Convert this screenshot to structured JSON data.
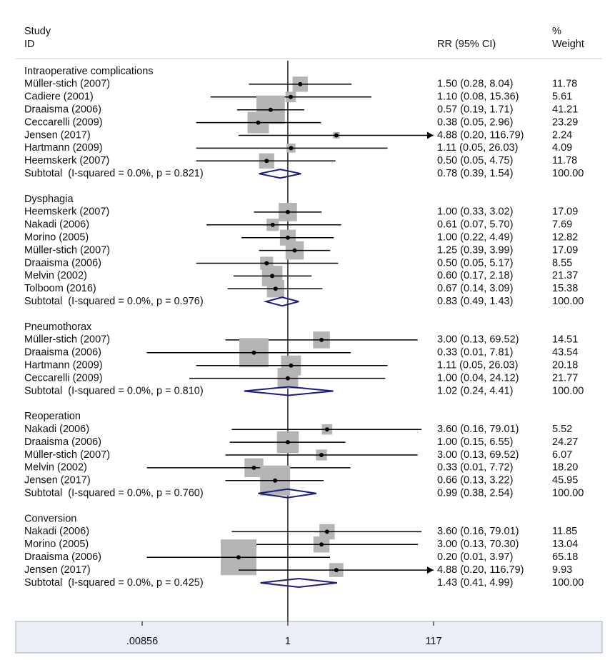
{
  "chart_data": {
    "type": "forest",
    "header": {
      "study": "Study",
      "id": "ID",
      "estimate": "RR (95% CI)",
      "weight_top": "%",
      "weight": "Weight"
    },
    "log_scale": true,
    "xlim": [
      0.00856,
      117
    ],
    "xticks": [
      {
        "value": 0.00856,
        "label": ".00856"
      },
      1,
      117
    ],
    "box_color": "#b5b5b5",
    "diamond_color": "#1c1c80",
    "groups": [
      {
        "name": "Intraoperative complications",
        "studies": [
          {
            "name": "Müller-stich (2007)",
            "rr": 1.5,
            "lo": 0.28,
            "hi": 8.04,
            "estimate_label": "1.50 (0.28, 8.04)",
            "weight": 11.78
          },
          {
            "name": "Cadiere (2001)",
            "rr": 1.1,
            "lo": 0.08,
            "hi": 15.36,
            "estimate_label": "1.10 (0.08, 15.36)",
            "weight": 5.61
          },
          {
            "name": "Draaisma (2006)",
            "rr": 0.57,
            "lo": 0.19,
            "hi": 1.71,
            "estimate_label": "0.57 (0.19, 1.71)",
            "weight": 41.21
          },
          {
            "name": "Ceccarelli (2009)",
            "rr": 0.38,
            "lo": 0.05,
            "hi": 2.96,
            "estimate_label": "0.38 (0.05, 2.96)",
            "weight": 23.29
          },
          {
            "name": "Jensen (2017)",
            "rr": 4.88,
            "lo": 0.2,
            "hi": 116.79,
            "estimate_label": "4.88 (0.20, 116.79)",
            "weight": 2.24
          },
          {
            "name": "Hartmann (2009)",
            "rr": 1.11,
            "lo": 0.05,
            "hi": 26.03,
            "estimate_label": "1.11 (0.05, 26.03)",
            "weight": 4.09
          },
          {
            "name": "Heemskerk (2007)",
            "rr": 0.5,
            "lo": 0.05,
            "hi": 4.75,
            "estimate_label": "0.50 (0.05, 4.75)",
            "weight": 11.78
          }
        ],
        "subtotal": {
          "label": "Subtotal  (I-squared = 0.0%, p = 0.821)",
          "rr": 0.78,
          "lo": 0.39,
          "hi": 1.54,
          "estimate_label": "0.78 (0.39, 1.54)",
          "weight": {
            "value": 100,
            "label": "100.00"
          }
        }
      },
      {
        "name": "Dysphagia",
        "studies": [
          {
            "name": "Heemskerk (2007)",
            "rr": 1.0,
            "lo": 0.33,
            "hi": 3.02,
            "estimate_label": "1.00 (0.33, 3.02)",
            "weight": 17.09
          },
          {
            "name": "Nakadi (2006)",
            "rr": 0.61,
            "lo": 0.07,
            "hi": 5.7,
            "estimate_label": "0.61 (0.07, 5.70)",
            "weight": 7.69
          },
          {
            "name": "Morino (2005)",
            "rr": 1.0,
            "lo": 0.22,
            "hi": 4.49,
            "estimate_label": "1.00 (0.22, 4.49)",
            "weight": 12.82
          },
          {
            "name": "Müller-stich (2007)",
            "rr": 1.25,
            "lo": 0.39,
            "hi": 3.99,
            "estimate_label": "1.25 (0.39, 3.99)",
            "weight": 17.09
          },
          {
            "name": "Draaisma (2006)",
            "rr": 0.5,
            "lo": 0.05,
            "hi": 5.17,
            "estimate_label": "0.50 (0.05, 5.17)",
            "weight": 8.55
          },
          {
            "name": "Melvin (2002)",
            "rr": 0.6,
            "lo": 0.17,
            "hi": 2.18,
            "estimate_label": "0.60 (0.17, 2.18)",
            "weight": 21.37
          },
          {
            "name": "Tolboom (2016)",
            "rr": 0.67,
            "lo": 0.14,
            "hi": 3.09,
            "estimate_label": "0.67 (0.14, 3.09)",
            "weight": 15.38
          }
        ],
        "subtotal": {
          "label": "Subtotal  (I-squared = 0.0%, p = 0.976)",
          "rr": 0.83,
          "lo": 0.49,
          "hi": 1.43,
          "estimate_label": "0.83 (0.49, 1.43)",
          "weight": {
            "value": 100,
            "label": "100.00"
          }
        }
      },
      {
        "name": "Pneumothorax",
        "studies": [
          {
            "name": "Müller-stich (2007)",
            "rr": 3.0,
            "lo": 0.13,
            "hi": 69.52,
            "estimate_label": "3.00 (0.13, 69.52)",
            "weight": 14.51
          },
          {
            "name": "Draaisma (2006)",
            "rr": 0.33,
            "lo": 0.01,
            "hi": 7.81,
            "estimate_label": "0.33 (0.01, 7.81)",
            "weight": 43.54
          },
          {
            "name": "Hartmann (2009)",
            "rr": 1.11,
            "lo": 0.05,
            "hi": 26.03,
            "estimate_label": "1.11 (0.05, 26.03)",
            "weight": 20.18
          },
          {
            "name": "Ceccarelli (2009)",
            "rr": 1.0,
            "lo": 0.04,
            "hi": 24.12,
            "estimate_label": "1.00 (0.04, 24.12)",
            "weight": 21.77
          }
        ],
        "subtotal": {
          "label": "Subtotal  (I-squared = 0.0%, p = 0.810)",
          "rr": 1.02,
          "lo": 0.24,
          "hi": 4.41,
          "estimate_label": "1.02 (0.24, 4.41)",
          "weight": {
            "value": 100,
            "label": "100.00"
          }
        }
      },
      {
        "name": "Reoperation",
        "studies": [
          {
            "name": "Nakadi (2006)",
            "rr": 3.6,
            "lo": 0.16,
            "hi": 79.01,
            "estimate_label": "3.60 (0.16, 79.01)",
            "weight": 5.52
          },
          {
            "name": "Draaisma (2006)",
            "rr": 1.0,
            "lo": 0.15,
            "hi": 6.55,
            "estimate_label": "1.00 (0.15, 6.55)",
            "weight": 24.27
          },
          {
            "name": "Müller-stich (2007)",
            "rr": 3.0,
            "lo": 0.13,
            "hi": 69.52,
            "estimate_label": "3.00 (0.13, 69.52)",
            "weight": 6.07
          },
          {
            "name": "Melvin (2002)",
            "rr": 0.33,
            "lo": 0.01,
            "hi": 7.72,
            "estimate_label": "0.33 (0.01, 7.72)",
            "weight": {
              "value": 18.2,
              "label": "18.20"
            }
          },
          {
            "name": "Jensen (2017)",
            "rr": 0.66,
            "lo": 0.13,
            "hi": 3.22,
            "estimate_label": "0.66 (0.13, 3.22)",
            "weight": 45.95
          }
        ],
        "subtotal": {
          "label": "Subtotal  (I-squared = 0.0%, p = 0.760)",
          "rr": 0.99,
          "lo": 0.38,
          "hi": 2.54,
          "estimate_label": "0.99 (0.38, 2.54)",
          "weight": {
            "value": 100,
            "label": "100.00"
          }
        }
      },
      {
        "name": "Conversion",
        "studies": [
          {
            "name": "Nakadi (2006)",
            "rr": 3.6,
            "lo": 0.16,
            "hi": 79.01,
            "estimate_label": "3.60 (0.16, 79.01)",
            "weight": 11.85
          },
          {
            "name": "Morino (2005)",
            "rr": 3.0,
            "lo": 0.13,
            "hi": 70.3,
            "estimate_label": "3.00 (0.13, 70.30)",
            "weight": 13.04
          },
          {
            "name": "Draaisma (2006)",
            "rr": 0.2,
            "lo": 0.01,
            "hi": 3.97,
            "estimate_label": "0.20 (0.01, 3.97)",
            "weight": 65.18
          },
          {
            "name": "Jensen (2017)",
            "rr": 4.88,
            "lo": 0.2,
            "hi": 116.79,
            "estimate_label": "4.88 (0.20, 116.79)",
            "weight": 9.93
          }
        ],
        "subtotal": {
          "label": "Subtotal  (I-squared = 0.0%, p = 0.425)",
          "rr": 1.43,
          "lo": 0.41,
          "hi": 4.99,
          "estimate_label": "1.43 (0.41, 4.99)",
          "weight": {
            "value": 100,
            "label": "100.00"
          }
        }
      }
    ]
  }
}
